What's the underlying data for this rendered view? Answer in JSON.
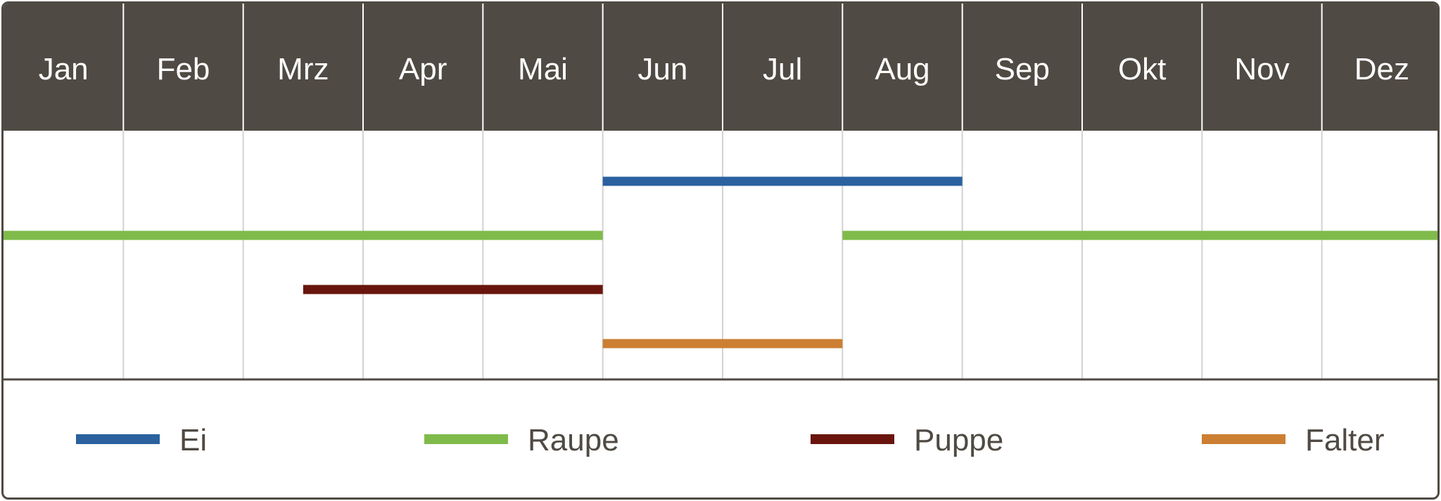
{
  "chart_data": {
    "type": "gantt",
    "categories": [
      "Jan",
      "Feb",
      "Mrz",
      "Apr",
      "Mai",
      "Jun",
      "Jul",
      "Aug",
      "Sep",
      "Okt",
      "Nov",
      "Dez"
    ],
    "series": [
      {
        "name": "Ei",
        "color": "#2a619e",
        "ranges": [
          [
            5,
            8
          ]
        ]
      },
      {
        "name": "Raupe",
        "color": "#7fbb4b",
        "ranges": [
          [
            0,
            5
          ],
          [
            7,
            12
          ]
        ]
      },
      {
        "name": "Puppe",
        "color": "#69150d",
        "ranges": [
          [
            2.5,
            5
          ]
        ]
      },
      {
        "name": "Falter",
        "color": "#cc7f33",
        "ranges": [
          [
            5,
            7
          ]
        ]
      }
    ],
    "x_unit": "months from start of January",
    "legend_position": "bottom",
    "header_color": "#4f4a43",
    "grid": true
  }
}
